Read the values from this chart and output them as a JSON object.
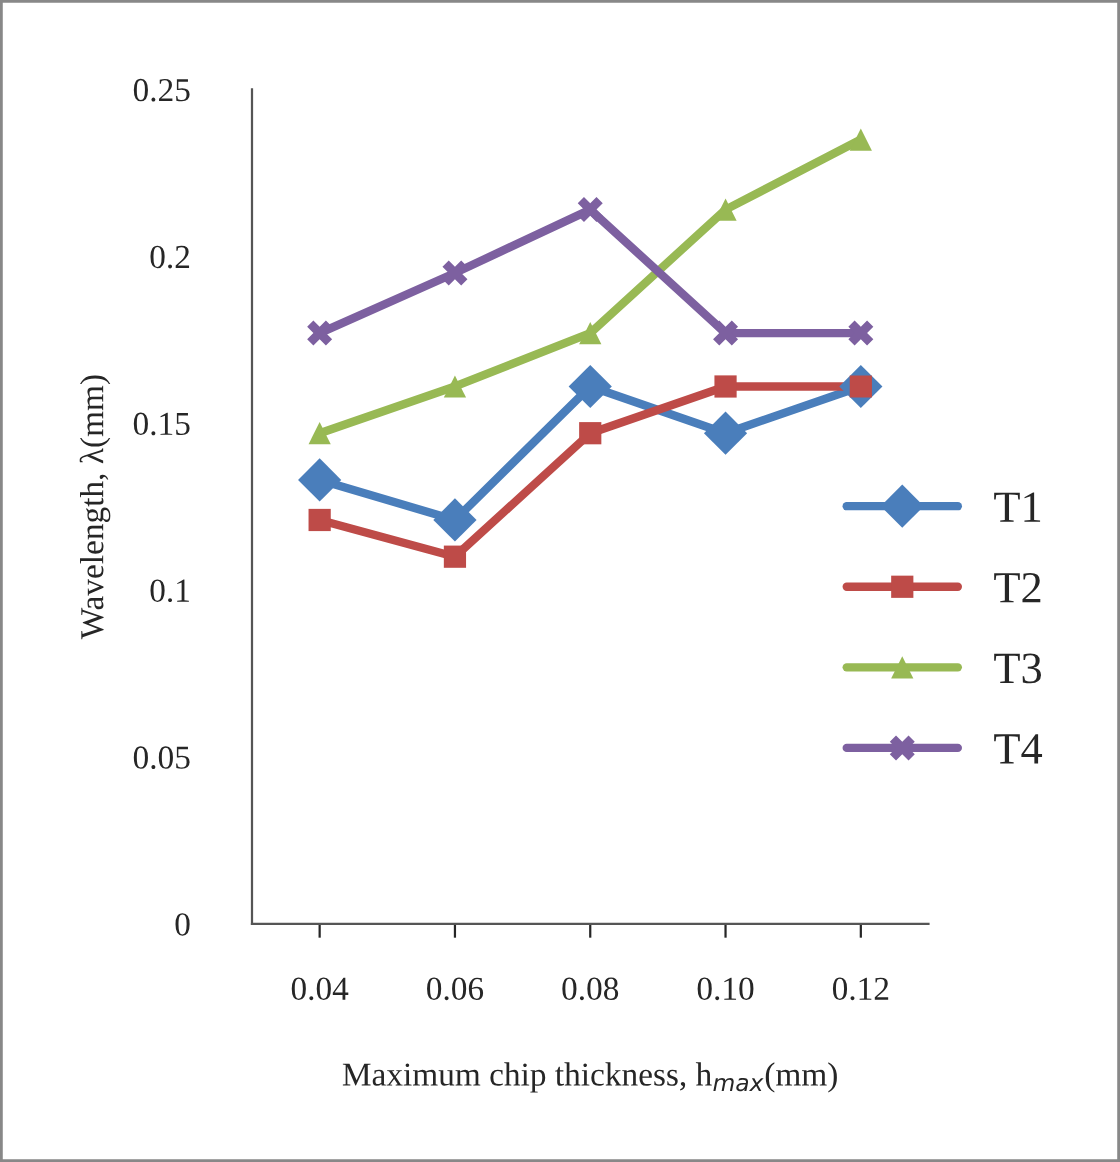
{
  "chart_data": {
    "type": "line",
    "xlabel": "Maximum chip thickness, h$_{max}$(mm)",
    "ylabel": "Wavelength, λ(mm)",
    "categories": [
      "0.04",
      "0.06",
      "0.08",
      "0.10",
      "0.12"
    ],
    "series": [
      {
        "name": "T1",
        "color": "#4a7ebb",
        "marker": "diamond",
        "values": [
          0.133,
          0.121,
          0.161,
          0.147,
          0.161
        ]
      },
      {
        "name": "T2",
        "color": "#be4b48",
        "marker": "square",
        "values": [
          0.121,
          0.11,
          0.147,
          0.161,
          0.161
        ]
      },
      {
        "name": "T3",
        "color": "#98b954",
        "marker": "triangle",
        "values": [
          0.147,
          0.161,
          0.177,
          0.214,
          0.235
        ]
      },
      {
        "name": "T4",
        "color": "#7d60a0",
        "marker": "cross",
        "values": [
          0.177,
          0.195,
          0.214,
          0.177,
          0.177
        ]
      }
    ],
    "ylim": [
      0,
      0.25
    ],
    "yticks": [
      0,
      0.05,
      0.1,
      0.15,
      0.2,
      0.25
    ],
    "grid": false,
    "legend": "right",
    "line_style": "solid"
  }
}
